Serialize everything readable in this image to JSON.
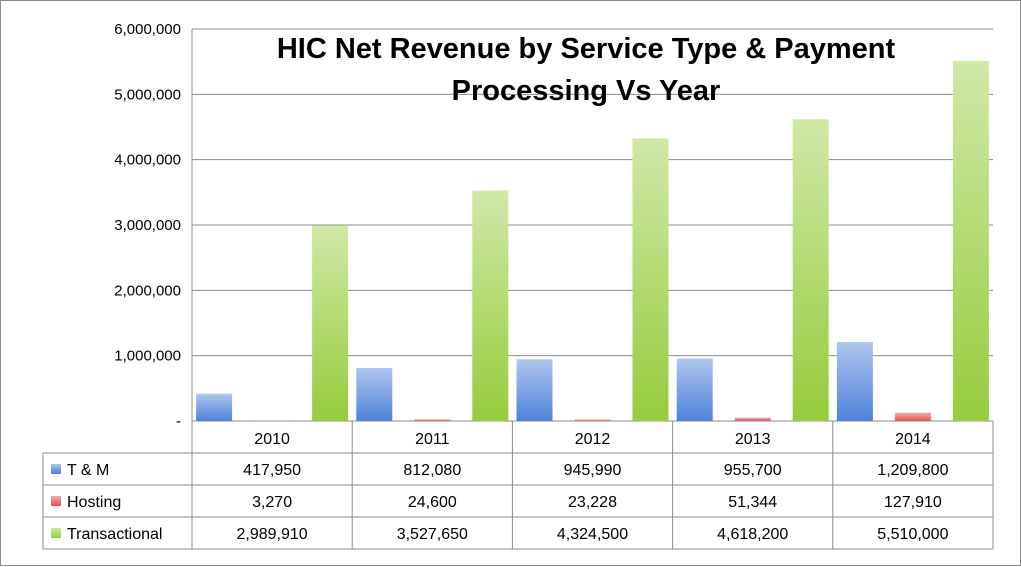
{
  "chart_data": {
    "type": "bar",
    "title": "HIC Net Revenue by Service Type & Payment Processing Vs Year",
    "title_lines": [
      "HIC Net Revenue by Service Type & Payment",
      "Processing Vs Year"
    ],
    "categories": [
      "2010",
      "2011",
      "2012",
      "2013",
      "2014"
    ],
    "series": [
      {
        "name": "T & M",
        "color": "#4f81d9",
        "values": [
          417950,
          812080,
          945990,
          955700,
          1209800
        ],
        "labels": [
          "417,950",
          "812,080",
          "945,990",
          "955,700",
          "1,209,800"
        ]
      },
      {
        "name": "Hosting",
        "color": "#e0514f",
        "values": [
          3270,
          24600,
          23228,
          51344,
          127910
        ],
        "labels": [
          "3,270",
          "24,600",
          "23,228",
          "51,344",
          "127,910"
        ]
      },
      {
        "name": "Transactional",
        "color": "#96cc3c",
        "values": [
          2989910,
          3527650,
          4324500,
          4618200,
          5510000
        ],
        "labels": [
          "2,989,910",
          "3,527,650",
          "4,324,500",
          "4,618,200",
          "5,510,000"
        ]
      }
    ],
    "ylim": [
      0,
      6000000
    ],
    "yticks": [
      0,
      1000000,
      2000000,
      3000000,
      4000000,
      5000000,
      6000000
    ],
    "ytick_labels": [
      "-",
      "1,000,000",
      "2,000,000",
      "3,000,000",
      "4,000,000",
      "5,000,000",
      "6,000,000"
    ],
    "grid": true,
    "legend": "data-table"
  }
}
